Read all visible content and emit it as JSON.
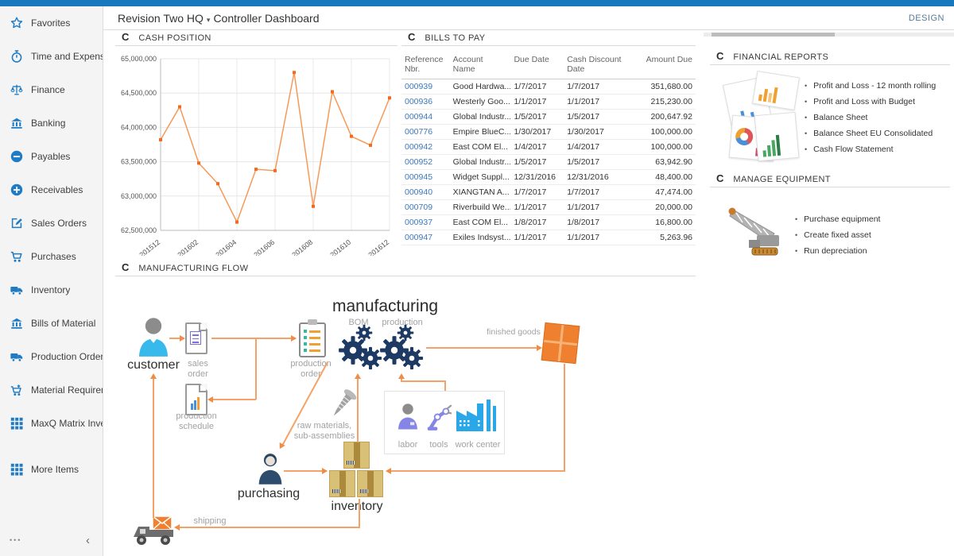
{
  "colors": {
    "topbar_blue": "#1878be",
    "sidebar_icon_blue": "#1e7bc4",
    "link_blue": "#3b78be",
    "arrow_orange": "#f5a268",
    "chart_line": "#f59a59",
    "chart_marker": "#f26a1e",
    "gear_navy": "#1c3a63",
    "finished_goods_orange": "#ee8030"
  },
  "icons": {
    "refresh_glyph": "C",
    "caret_glyph": "▾",
    "more_glyph": "•••",
    "collapse_glyph": "‹"
  },
  "header": {
    "company": "Revision Two HQ",
    "page_title": "Controller Dashboard",
    "design_label": "DESIGN"
  },
  "sidebar": {
    "items": [
      {
        "label": "Favorites",
        "icon": "star-icon"
      },
      {
        "label": "Time and Expenses",
        "icon": "stopwatch-icon"
      },
      {
        "label": "Finance",
        "icon": "scales-icon"
      },
      {
        "label": "Banking",
        "icon": "bank-icon"
      },
      {
        "label": "Payables",
        "icon": "minus-circle-icon"
      },
      {
        "label": "Receivables",
        "icon": "plus-circle-icon"
      },
      {
        "label": "Sales Orders",
        "icon": "edit-icon"
      },
      {
        "label": "Purchases",
        "icon": "cart-icon"
      },
      {
        "label": "Inventory",
        "icon": "truck-icon"
      },
      {
        "label": "Bills of Material",
        "icon": "bank-icon"
      },
      {
        "label": "Production Orders",
        "icon": "truck-icon"
      },
      {
        "label": "Material Requirem...",
        "icon": "cart-plus-icon"
      },
      {
        "label": "MaxQ Matrix Invent...",
        "icon": "grid-icon"
      },
      {
        "label": "More Items",
        "icon": "grid-icon",
        "gap_before": true
      }
    ]
  },
  "widgets": {
    "cash_position": {
      "title": "CASH POSITION"
    },
    "bills_to_pay": {
      "title": "BILLS TO PAY",
      "columns": [
        "Reference Nbr.",
        "Account Name",
        "Due Date",
        "Cash Discount Date",
        "Amount Due"
      ],
      "rows": [
        [
          "000939",
          "Good Hardwa...",
          "1/7/2017",
          "1/7/2017",
          "351,680.00"
        ],
        [
          "000936",
          "Westerly Goo...",
          "1/1/2017",
          "1/1/2017",
          "215,230.00"
        ],
        [
          "000944",
          "Global Industr...",
          "1/5/2017",
          "1/5/2017",
          "200,647.92"
        ],
        [
          "000776",
          "Empire BlueC...",
          "1/30/2017",
          "1/30/2017",
          "100,000.00"
        ],
        [
          "000942",
          "East COM El...",
          "1/4/2017",
          "1/4/2017",
          "100,000.00"
        ],
        [
          "000952",
          "Global Industr...",
          "1/5/2017",
          "1/5/2017",
          "63,942.90"
        ],
        [
          "000945",
          "Widget Suppl...",
          "12/31/2016",
          "12/31/2016",
          "48,400.00"
        ],
        [
          "000940",
          "XIANGTAN A...",
          "1/7/2017",
          "1/7/2017",
          "47,474.00"
        ],
        [
          "000709",
          "Riverbuild We...",
          "1/1/2017",
          "1/1/2017",
          "20,000.00"
        ],
        [
          "000937",
          "East COM El...",
          "1/8/2017",
          "1/8/2017",
          "16,800.00"
        ],
        [
          "000947",
          "Exiles Indsyst...",
          "1/1/2017",
          "1/1/2017",
          "5,263.96"
        ]
      ]
    },
    "financial_reports": {
      "title": "FINANCIAL REPORTS",
      "links": [
        "Profit and Loss - 12 month rolling",
        "Profit and Loss with Budget",
        "Balance Sheet",
        "Balance Sheet EU Consolidated",
        "Cash Flow Statement"
      ]
    },
    "manage_equipment": {
      "title": "MANAGE EQUIPMENT",
      "links": [
        "Purchase equipment",
        "Create fixed asset",
        "Run depreciation"
      ]
    },
    "manufacturing_flow": {
      "title": "MANUFACTURING FLOW",
      "labels": {
        "manufacturing": "manufacturing",
        "bom": "BOM",
        "production": "production",
        "customer": "customer",
        "sales_order": "sales order",
        "production_order": "production order",
        "production_schedule": "production schedule",
        "finished_goods": "finished goods",
        "raw_materials": "raw materials, sub-assemblies",
        "labor": "labor",
        "tools": "tools",
        "work_center": "work center",
        "purchasing": "purchasing",
        "inventory": "inventory",
        "shipping": "shipping"
      }
    }
  },
  "chart_data": {
    "type": "line",
    "title": "CASH POSITION",
    "x": [
      "201512",
      "201601",
      "201602",
      "201603",
      "201604",
      "201605",
      "201606",
      "201607",
      "201608",
      "201609",
      "201610",
      "201611",
      "201612"
    ],
    "values": [
      63820000,
      64300000,
      63480000,
      63180000,
      62620000,
      63390000,
      63370000,
      64800000,
      62850000,
      64520000,
      63870000,
      63740000,
      64430000
    ],
    "visible_x_ticks": [
      "201512",
      "201602",
      "201604",
      "201606",
      "201608",
      "201610",
      "201612"
    ],
    "xlabel": "",
    "ylabel": "",
    "ylim": [
      62500000,
      65000000
    ],
    "ytick_step": 500000,
    "grid": true,
    "legend": "none"
  }
}
